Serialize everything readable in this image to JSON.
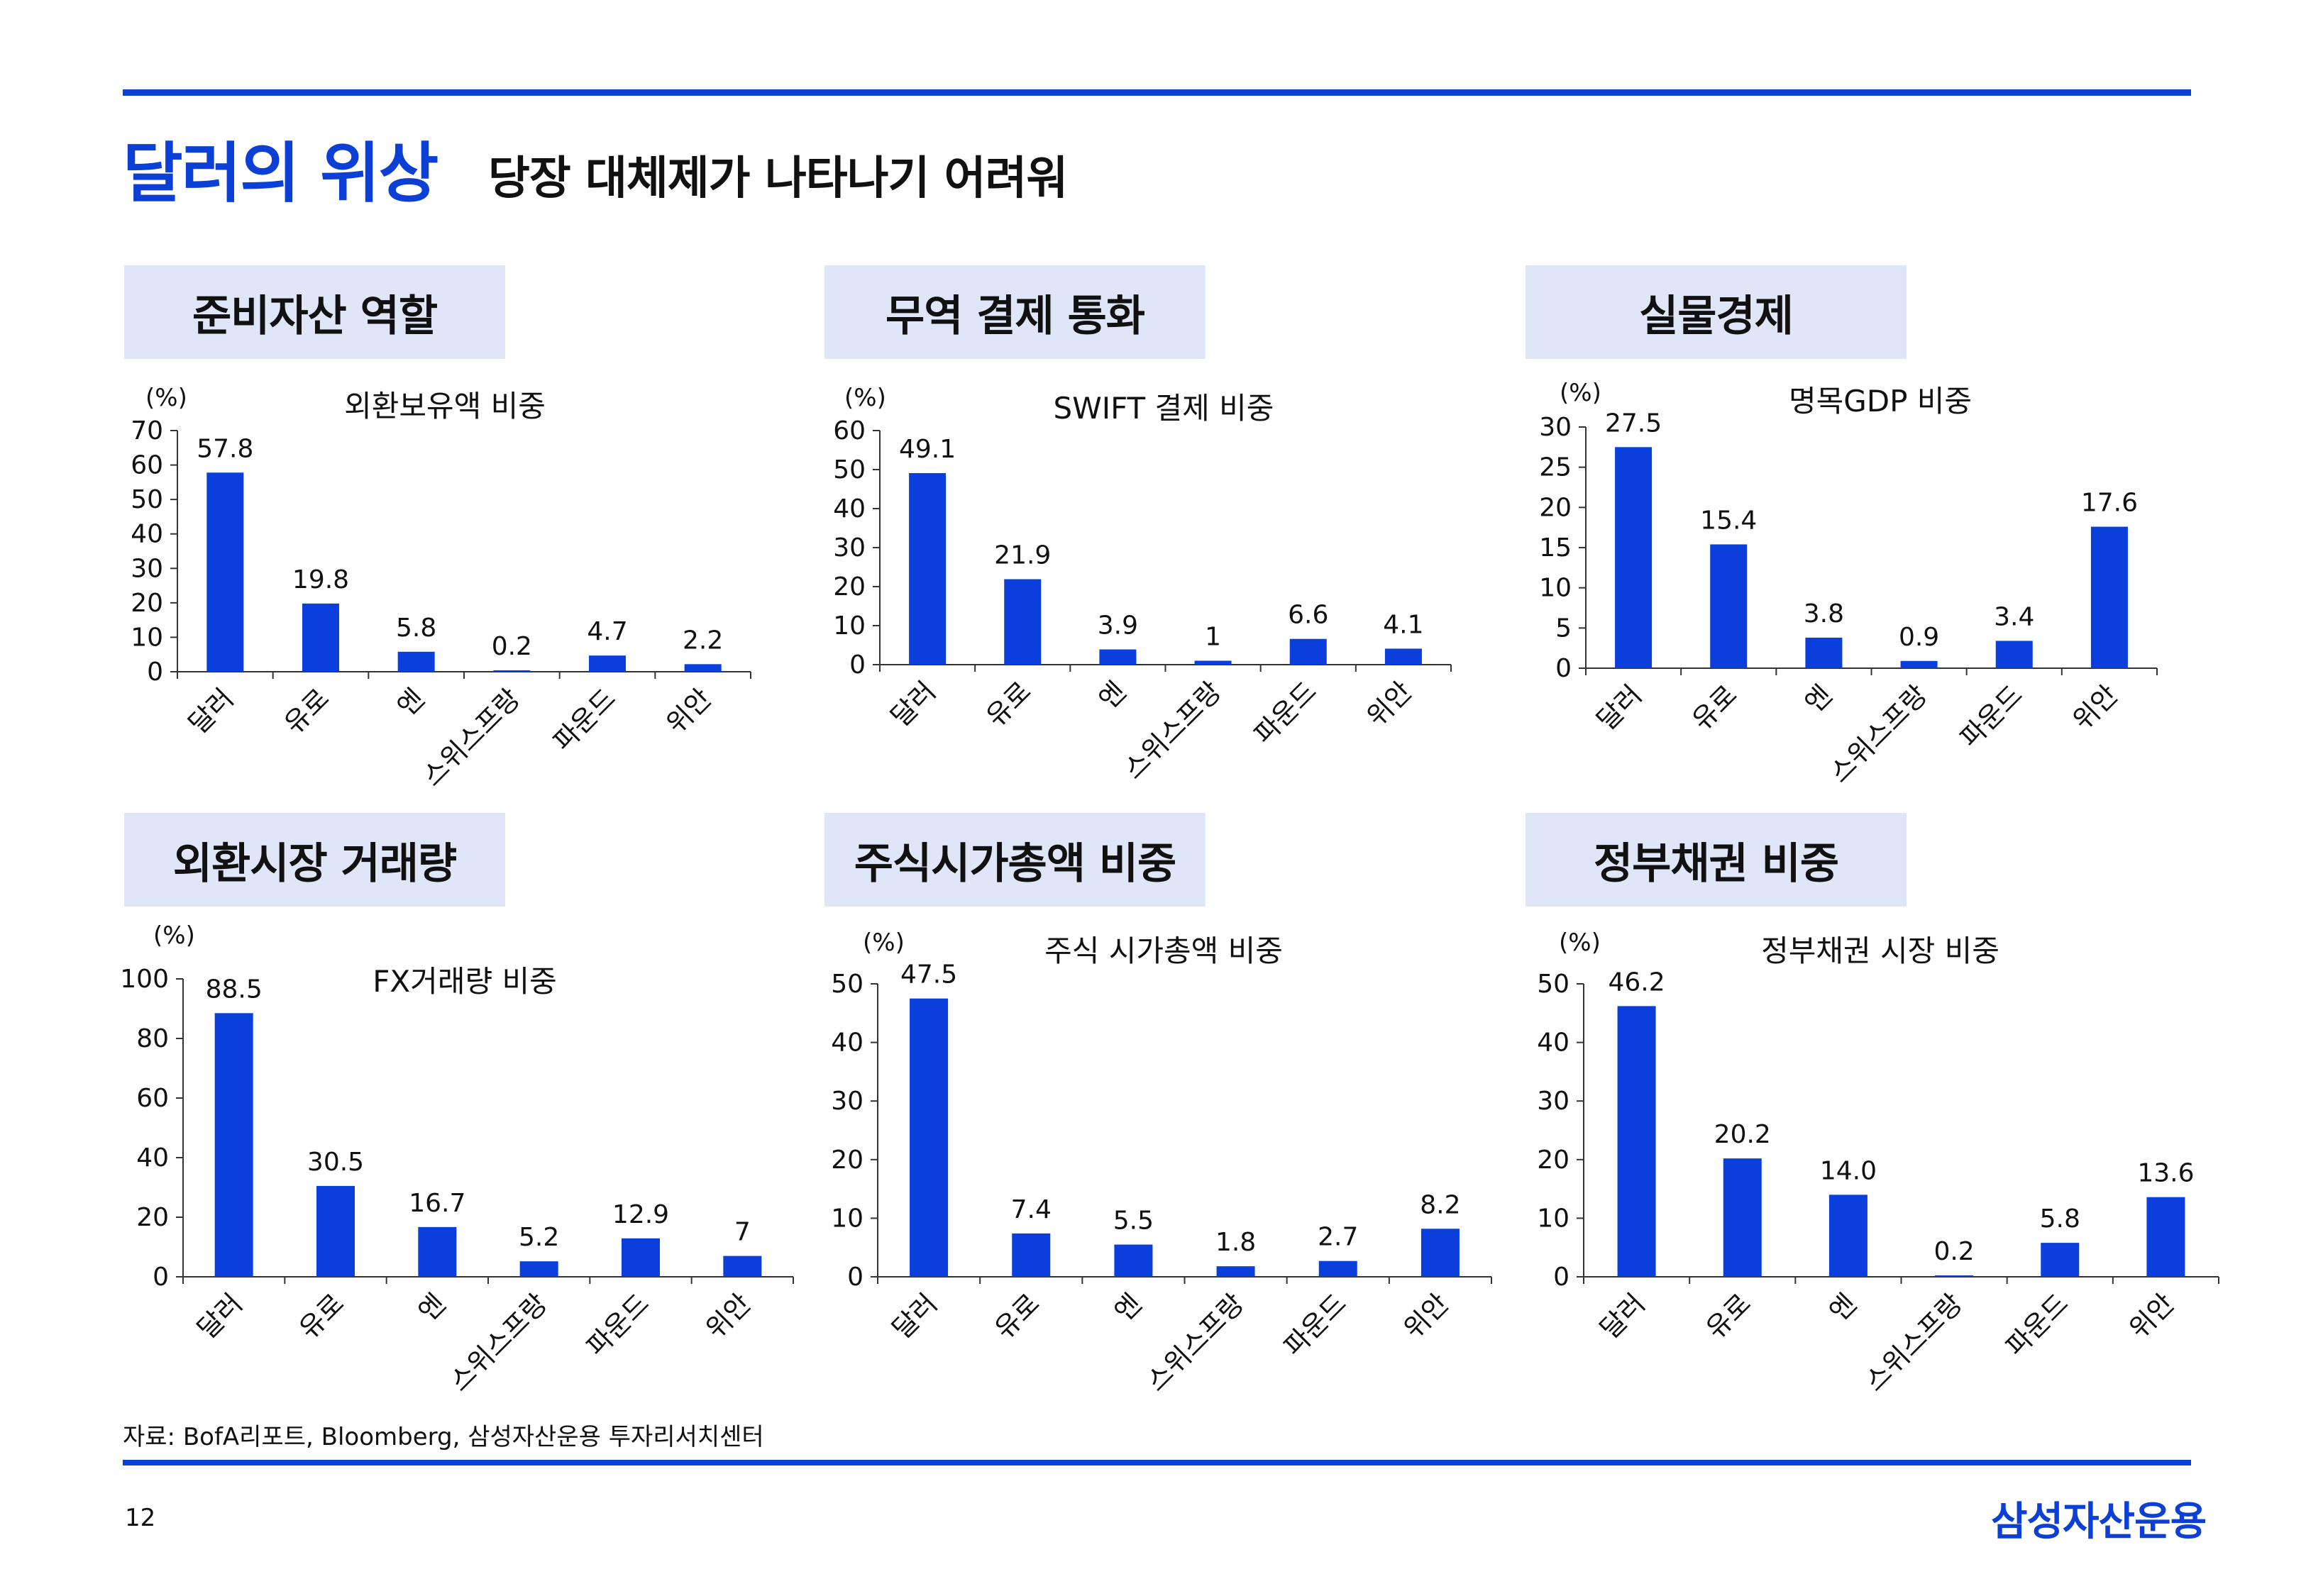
{
  "header": {
    "title": "달러의 위상",
    "subtitle": "당장 대체제가 나타나기 어려워"
  },
  "footer": {
    "source": "자료: BofA리포트, Bloomberg, 삼성자산운용 투자리서치센터",
    "page": "12",
    "brand": "삼성자산운용"
  },
  "colors": {
    "accent": "#0b3fd6",
    "tag_bg": "#dfe6f8",
    "bar": "#0a3fdb"
  },
  "panels": [
    {
      "tag": "준비자산 역할"
    },
    {
      "tag": "무역 결제 통화"
    },
    {
      "tag": "실물경제"
    },
    {
      "tag": "외환시장 거래량"
    },
    {
      "tag": "주식시가총액 비중"
    },
    {
      "tag": "정부채권 비중"
    }
  ],
  "chart_data": [
    {
      "type": "bar",
      "title": "외환보유액 비중",
      "unit": "(%)",
      "categories": [
        "달러",
        "유로",
        "엔",
        "스위스프랑",
        "파운드",
        "위안"
      ],
      "values": [
        57.8,
        19.8,
        5.8,
        0.2,
        4.7,
        2.2
      ],
      "labels": [
        "57.8",
        "19.8",
        "5.8",
        "0.2",
        "4.7",
        "2.2"
      ],
      "ylim": [
        0,
        70
      ],
      "yticks": [
        0,
        10,
        20,
        30,
        40,
        50,
        60,
        70
      ],
      "grid": false,
      "legend": "none"
    },
    {
      "type": "bar",
      "title": "SWIFT 결제 비중",
      "unit": "(%)",
      "categories": [
        "달러",
        "유로",
        "엔",
        "스위스프랑",
        "파운드",
        "위안"
      ],
      "values": [
        49.1,
        21.9,
        3.9,
        1,
        6.6,
        4.1
      ],
      "labels": [
        "49.1",
        "21.9",
        "3.9",
        "1",
        "6.6",
        "4.1"
      ],
      "ylim": [
        0,
        60
      ],
      "yticks": [
        0,
        10,
        20,
        30,
        40,
        50,
        60
      ],
      "grid": false,
      "legend": "none"
    },
    {
      "type": "bar",
      "title": "명목GDP 비중",
      "unit": "(%)",
      "categories": [
        "달러",
        "유로",
        "엔",
        "스위스프랑",
        "파운드",
        "위안"
      ],
      "values": [
        27.5,
        15.4,
        3.8,
        0.9,
        3.4,
        17.6
      ],
      "labels": [
        "27.5",
        "15.4",
        "3.8",
        "0.9",
        "3.4",
        "17.6"
      ],
      "ylim": [
        0,
        30
      ],
      "yticks": [
        0,
        5,
        10,
        15,
        20,
        25,
        30
      ],
      "grid": false,
      "legend": "none"
    },
    {
      "type": "bar",
      "title": "FX거래량 비중",
      "unit": "(%)",
      "categories": [
        "달러",
        "유로",
        "엔",
        "스위스프랑",
        "파운드",
        "위안"
      ],
      "values": [
        88.5,
        30.5,
        16.7,
        5.2,
        12.9,
        7
      ],
      "labels": [
        "88.5",
        "30.5",
        "16.7",
        "5.2",
        "12.9",
        "7"
      ],
      "ylim": [
        0,
        100
      ],
      "yticks": [
        0,
        20,
        40,
        60,
        80,
        100
      ],
      "grid": false,
      "legend": "none"
    },
    {
      "type": "bar",
      "title": "주식 시가총액 비중",
      "unit": "(%)",
      "categories": [
        "달러",
        "유로",
        "엔",
        "스위스프랑",
        "파운드",
        "위안"
      ],
      "values": [
        47.5,
        7.4,
        5.5,
        1.8,
        2.7,
        8.2
      ],
      "labels": [
        "47.5",
        "7.4",
        "5.5",
        "1.8",
        "2.7",
        "8.2"
      ],
      "ylim": [
        0,
        50
      ],
      "yticks": [
        0,
        10,
        20,
        30,
        40,
        50
      ],
      "grid": false,
      "legend": "none"
    },
    {
      "type": "bar",
      "title": "정부채권 시장 비중",
      "unit": "(%)",
      "categories": [
        "달러",
        "유로",
        "엔",
        "스위스프랑",
        "파운드",
        "위안"
      ],
      "values": [
        46.2,
        20.2,
        14.0,
        0.2,
        5.8,
        13.6
      ],
      "labels": [
        "46.2",
        "20.2",
        "14.0",
        "0.2",
        "5.8",
        "13.6"
      ],
      "ylim": [
        0,
        50
      ],
      "yticks": [
        0,
        10,
        20,
        30,
        40,
        50
      ],
      "grid": false,
      "legend": "none"
    }
  ]
}
